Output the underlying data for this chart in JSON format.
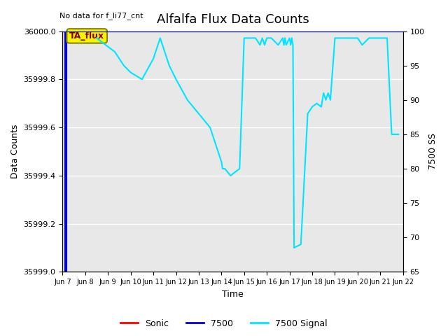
{
  "title": "Alfalfa Flux Data Counts",
  "no_data_text": "No data for f_li77_cnt",
  "xlabel": "Time",
  "ylabel_left": "Data Counts",
  "ylabel_right": "7500 SS",
  "annotation": "TA_flux",
  "ylim_left": [
    35999.0,
    36000.0
  ],
  "ylim_right": [
    65,
    100
  ],
  "x_tick_labels": [
    "Jun 7",
    "Jun 8",
    "Jun 9",
    "Jun 10",
    "Jun 11",
    "Jun 12",
    "Jun 13",
    "Jun 14",
    "Jun 15",
    "Jun 16",
    "Jun 17",
    "Jun 18",
    "Jun 19",
    "Jun 20",
    "Jun 21",
    "Jun 22"
  ],
  "left_yticks": [
    35999.0,
    35999.2,
    35999.4,
    35999.6,
    35999.8,
    36000.0
  ],
  "right_yticks": [
    65,
    70,
    75,
    80,
    85,
    90,
    95,
    100
  ],
  "blue_line_x": 7.15,
  "cyan_x": [
    8.5,
    8.9,
    9.3,
    9.7,
    10.0,
    10.5,
    11.0,
    11.3,
    11.7,
    12.0,
    12.5,
    13.0,
    13.5,
    13.8,
    14.0,
    14.05,
    14.15,
    14.4,
    14.8,
    15.0,
    15.5,
    15.7,
    15.8,
    15.9,
    16.0,
    16.1,
    16.2,
    16.5,
    16.7,
    16.75,
    16.8,
    16.85,
    17.0,
    17.05,
    17.1,
    17.15,
    17.2,
    17.5,
    17.8,
    18.0,
    18.2,
    18.4,
    18.5,
    18.6,
    18.7,
    18.8,
    19.0,
    19.2,
    19.5,
    19.8,
    20.0,
    20.2,
    20.5,
    20.8,
    21.0,
    21.3,
    21.5,
    21.8
  ],
  "cyan_ss": [
    99,
    98,
    97,
    95,
    94,
    93,
    96,
    99,
    95,
    93,
    90,
    88,
    86,
    83,
    81,
    80,
    80,
    79,
    80,
    99,
    99,
    98,
    99,
    98,
    99,
    99,
    99,
    98,
    99,
    98,
    99,
    98,
    99,
    98,
    99,
    98,
    68.5,
    69,
    88,
    89,
    89.5,
    89,
    91,
    90,
    91,
    90,
    99,
    99,
    99,
    99,
    99,
    98,
    99,
    99,
    99,
    99,
    85,
    85
  ],
  "background_color": "#ffffff",
  "plot_bg_color": "#e8e8e8",
  "grid_color": "#ffffff",
  "cyan_color": "#00e5ff",
  "blue_color": "#0000cd",
  "red_color": "#ff0000",
  "title_fontsize": 13,
  "annotation_facecolor": "#f5f500",
  "annotation_edgecolor": "#888800",
  "annotation_textcolor": "#8b0000",
  "legend_entries": [
    "Sonic",
    "7500",
    "7500 Signal"
  ]
}
